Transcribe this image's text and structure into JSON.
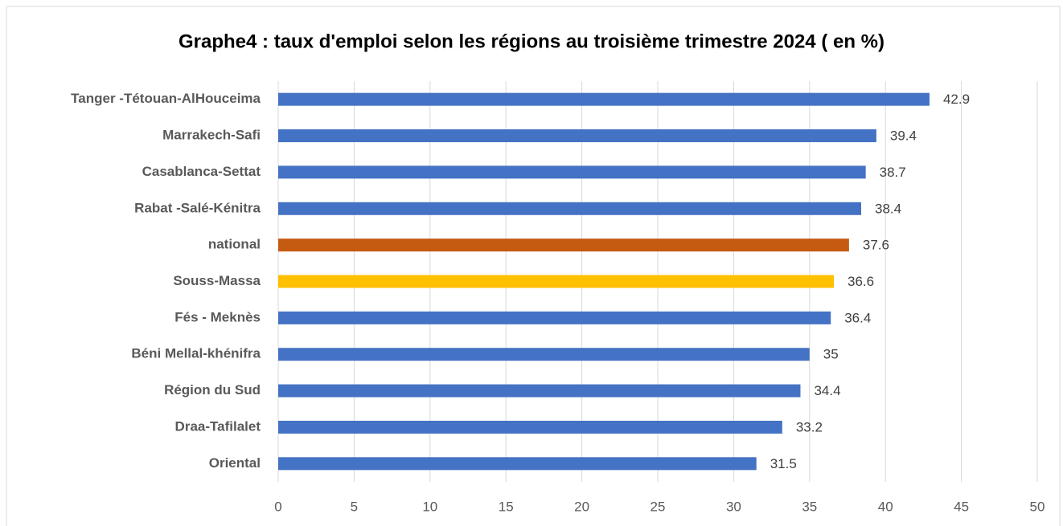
{
  "chart_data": {
    "type": "hbar",
    "title": "Graphe4 : taux d'emploi selon les régions au troisième trimestre 2024  ( en %)",
    "categories": [
      "Tanger -Tétouan-AlHouceima",
      "Marrakech-Safi",
      "Casablanca-Settat",
      "Rabat -Salé-Kénitra",
      "national",
      "Souss-Massa",
      "Fés - Meknès",
      "Béni Mellal-khénifra",
      "Région du Sud",
      "Draa-Tafilalet",
      "Oriental"
    ],
    "values": [
      42.9,
      39.4,
      38.7,
      38.4,
      37.6,
      36.6,
      36.4,
      35,
      34.4,
      33.2,
      31.5
    ],
    "colors": [
      "#4472c4",
      "#4472c4",
      "#4472c4",
      "#4472c4",
      "#c55a11",
      "#ffc000",
      "#4472c4",
      "#4472c4",
      "#4472c4",
      "#4472c4",
      "#4472c4"
    ],
    "xlim": [
      0,
      50
    ],
    "xticks": [
      0,
      5,
      10,
      15,
      20,
      25,
      30,
      35,
      40,
      45,
      50
    ],
    "grid": true
  }
}
